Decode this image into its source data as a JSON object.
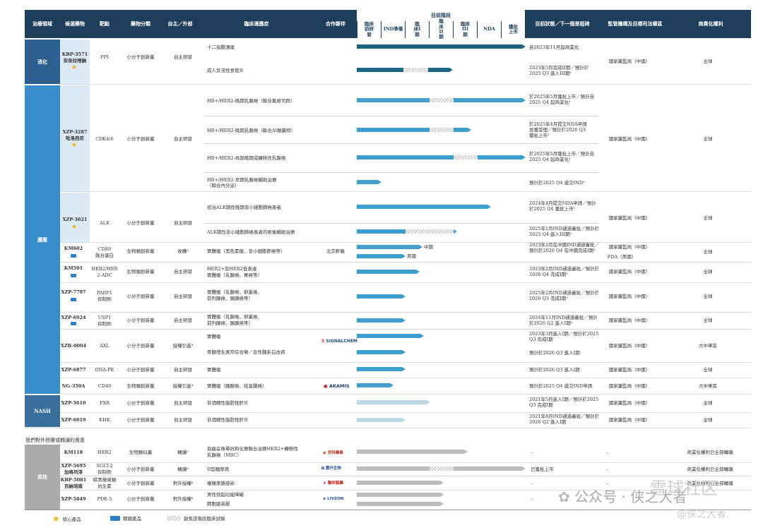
{
  "header": {
    "area": "治療領域",
    "candidate": "候選藥物",
    "target": "靶點",
    "category": "藥物分類",
    "dev": "自主／外部",
    "indication": "臨床適應症",
    "partner": "合作夥伴",
    "stage_head": "目前階段",
    "stages": [
      "臨床前研發",
      "IND準備",
      "臨床I期",
      "臨床II期",
      "臨床III期",
      "NDA",
      "獲批上市"
    ],
    "status": "目前狀態／下一個里程碑",
    "regulator": "監管機構及目標司法權區",
    "rights": "商業化權利"
  },
  "areas": {
    "digestive": "消化",
    "oncology": "腫瘤",
    "nash": "NASH",
    "other": "其他"
  },
  "rows": {
    "kbp3571": {
      "drug1": "KBP-3571",
      "drug2": "安奈拉唑鈉",
      "target": "PPI",
      "cat": "小分子創新藥",
      "dev": "自主研發",
      "ind1": "十二指腸潰瘍",
      "ind2": "成人反流性食管炎",
      "st1": "自2023年11月起商業化",
      "st2": "2023年5月完成II期／預計於2025 Q3 進入III期¹",
      "reg": "國家藥監局（中國）",
      "rights": "全球"
    },
    "xzp3287": {
      "drug1": "XZP-3287",
      "drug2": "吡洛西尼",
      "target": "CDK4/6",
      "cat": "小分子創新藥",
      "dev": "自主研發",
      "ind1": "HR+/HER2-晚期乳腺癌（聯合氟維司群）",
      "ind2": "HR+/HER2-晚期乳腺癌（聯合AI類藥物）",
      "ind3": "HR+/HER2-局部晚期或轉移性乳腺癌",
      "ind4": "HR+/HER2-早期乳腺癌輔助治療（聯合內分泌）",
      "st1": "於2025年5月獲批上市／預計自2025 Q4 起商業化¹",
      "st2": "於2025年4月提交NDA申請並獲受理／預計於2026 Q3獲批上市²",
      "st3": "於2025年5月獲批上市／預計自2025 Q4 起商業化¹",
      "st4": "預計於2025 Q4 遞交IND²",
      "reg": "國家藥監局（中國）",
      "rights": "全球"
    },
    "xzp3621": {
      "drug1": "XZP-3621",
      "target": "ALK",
      "cat": "小分子創新藥",
      "dev": "自主研發",
      "ind1": "初治ALK陽性晚期非小細胞肺癌患者",
      "ind2": "ALK陽性非小細胞肺癌患者的術後輔助治療",
      "st1": "2024年4月提交NDA申請／預計於2025 Q4 獲批上市¹",
      "st2": "2025年1月IND通過審批／預計於2025 Q4 進入III期²",
      "reg": "國家藥監局（中國）",
      "rights": "全球"
    },
    "km602": {
      "drug1": "KM602",
      "target1": "CD80",
      "target2": "融合蛋白",
      "cat": "生物類創新藥",
      "dev": "收購³",
      "ind": "實體瘤（黑色素瘤、非小細胞肺癌等）",
      "partner": "北京軒義",
      "lab_cn": "中國",
      "lab_us": "美國",
      "st1": "2023年2月在中國IND通過審批／預計於2026 Q4 在中國完成I期²",
      "reg1": "國家藥監局（中國）",
      "reg2": "FDA（美國）",
      "rights": "全球"
    },
    "km501": {
      "drug1": "KM501",
      "target1": "HER2/HER",
      "target2": "2-ADC",
      "cat": "生物類創新藥",
      "dev": "自主研發",
      "ind1": "HER2+及HER2低表達",
      "ind2": "實體瘤（乳腺癌、胃癌等）",
      "st1": "2023年2月IND通過審批／預計於2026 Q4 完成I期²",
      "reg": "國家藥監局（中國）",
      "rights": "全球"
    },
    "xzp7797": {
      "drug1": "XZP-7797",
      "target1": "PARP1",
      "target2": "抑制劑",
      "cat": "小分子創新藥",
      "dev": "自主研發",
      "ind1": "實體瘤（乳腺癌、卵巢癌、",
      "ind2": "前列腺癌、胰腺癌等）",
      "st1": "2025年2月IND通過審批／預計於2026 Q3 完成I期²",
      "reg": "國家藥監局（中國）",
      "rights": "全球"
    },
    "xzp6924": {
      "drug1": "XZP-6924",
      "target1": "USP1",
      "target2": "抑制劑",
      "cat": "小分子創新藥",
      "dev": "自主研發",
      "ind1": "實體瘤（乳腺癌、卵巢癌、",
      "ind2": "前列腺癌、胰腺癌等）",
      "st1": "2024年11月IND通過審批／預計於2026 Q2 進入I期²",
      "reg": "國家藥監局（中國）",
      "rights": "全球"
    },
    "xzb0004": {
      "drug1": "XZB-0004",
      "target": "AXL",
      "cat": "小分子創新藥",
      "dev": "授權引進⁴",
      "ind1": "實體瘤",
      "ind2": "骨髓增生異常綜合徵／急性髓系白血病",
      "partner": "SIGNALCHEM",
      "st1": "2023年3月進入I期／預計於2025 Q3 完成I期",
      "st2": "預計於2026 Q3 進入I期",
      "reg": "國家藥監局（中國）",
      "rights": "大中華區"
    },
    "xzp6877": {
      "drug1": "XZP-6877",
      "target": "DNA-PK",
      "cat": "小分子創新藥",
      "dev": "自主研發",
      "ind": "實體瘤",
      "st": "預計於2026 Q3 進入I期",
      "reg": "國家藥監局（中國）",
      "rights": "全球"
    },
    "ng350a": {
      "drug1": "NG-350A",
      "target": "CD40",
      "cat": "生物類創新藥",
      "dev": "授權引進⁴",
      "ind": "實體瘤（胰腺癌、結直腸癌）",
      "partner": "AKAMIS",
      "st": "預計於2025 Q4 遞交IND申請",
      "reg": "國家藥監局（中國）",
      "rights": "大中華區"
    },
    "xzp5610": {
      "drug1": "XZP-5610",
      "target": "FXR",
      "cat": "小分子創新藥",
      "dev": "自主研發",
      "ind": "非酒精性脂肪性肝炎",
      "st": "2021年5月進入I期／預計於2025 Q3 完成I期",
      "reg": "國家藥監局（中國）",
      "rights": "全球"
    },
    "xzp6019": {
      "drug1": "XZP-6019",
      "target": "KHK",
      "cat": "小分子創新藥",
      "dev": "自主研發",
      "ind": "非酒精性脂肪性肝炎",
      "st": "2021年8月IND通過審批／預計於2026 Q2 進入I期",
      "reg": "國家藥監局（中國）",
      "rights": "全球"
    }
  },
  "out_section": "我們對外授權或轉讓的資產",
  "out": {
    "km118": {
      "drug1": "KM118",
      "target": "HER2",
      "cat": "生物類似藥",
      "dev": "轉讓⁵",
      "ind1": "與曲妥珠單抗和化療聯合治療HER2+轉移性",
      "ind2": "乳腺癌（MBC）",
      "partner": "安科藥業",
      "st": "–",
      "reg": "–",
      "rights": "商業化權利已全部轉讓"
    },
    "xzp5695": {
      "drug1": "XZP-5695",
      "drug2": "加格列淨",
      "target1": "SGLT-2",
      "target2": "抑制劑",
      "cat": "小分子創新藥",
      "dev": "轉讓⁶",
      "ind": "II型糖尿病",
      "partner": "惠升生物",
      "st": "已獲批上市",
      "reg": "–",
      "rights": "商業化權利已全部轉讓"
    },
    "kbp5081": {
      "drug1": "KBP-5081",
      "drug2": "百納培南",
      "target1": "碳青黴烯類",
      "target2": "抗生素",
      "cat": "小分子創新藥",
      "dev": "對外授權⁶",
      "ind": "複雜尿路感染",
      "partner": "聯邦製藥",
      "st": "–",
      "reg": "–",
      "rights": "商業化權利已全部轉讓"
    },
    "xzp5849": {
      "drug1": "XZP-5849",
      "target": "PDE-5",
      "cat": "小分子創新藥",
      "dev": "對外授權⁶",
      "ind1": "男性勃起功能障礙",
      "ind2": "肺動脈高壓",
      "partner": "LIVZON",
      "st": "–",
      "reg": "–"
    }
  },
  "legend": {
    "core": "核心產品",
    "key": "關鍵產品",
    "exempt": "豁免該階段臨床試驗"
  },
  "watermark": {
    "wx": "公众号 · 侠之大者",
    "site": "雪球社区",
    "at": "@侠之大者."
  },
  "colors": {
    "header": "#1e3f5c",
    "area_digest": "#2a5f8f",
    "area_onc": "#3a8dcb",
    "other": "#aaaaaa",
    "bar_dark": "#1d6580",
    "bar_mid": "#3e9fcf",
    "bar_light": "#bcd9e8",
    "bar_gray": "#bdbdbd"
  }
}
